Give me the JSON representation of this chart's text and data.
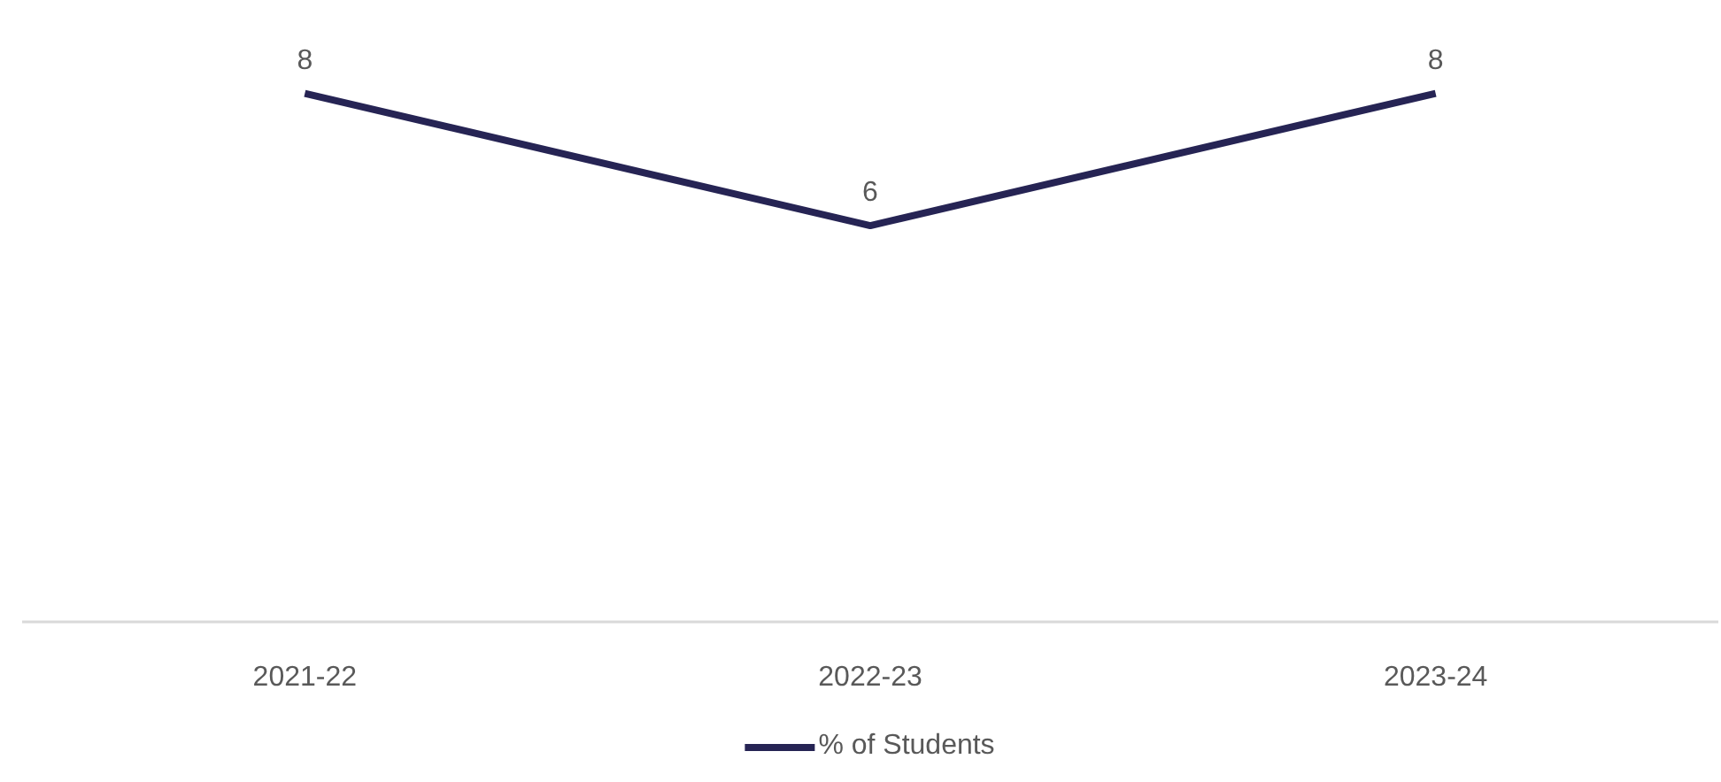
{
  "chart_data": {
    "type": "line",
    "categories": [
      "2021-22",
      "2022-23",
      "2023-24"
    ],
    "series": [
      {
        "name": "% of Students",
        "color": "#262454",
        "values": [
          8,
          6,
          8
        ]
      }
    ],
    "data_labels": true,
    "legend": "bottom"
  }
}
